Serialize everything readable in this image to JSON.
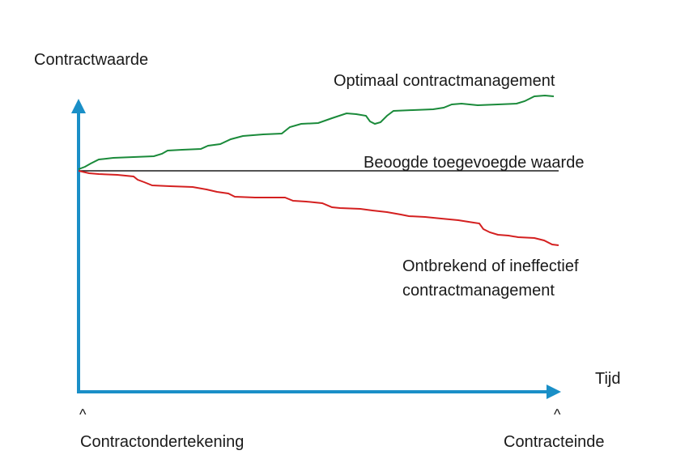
{
  "y_axis_label": "Contractwaarde",
  "x_axis_label": "Tijd",
  "start_label": "Contractondertekening",
  "end_label": "Contracteinde",
  "tick_marker": "^",
  "colors": {
    "axis": "#1a8fc7",
    "optimal": "#1a8a3a",
    "target": "#1a1a1a",
    "ineffective": "#d42020"
  },
  "lines": {
    "optimal": {
      "label": "Optimaal contractmanagement"
    },
    "target": {
      "label": "Beoogde toegevoegde waarde"
    },
    "ineffective": {
      "label_line1": "Ontbrekend of ineffectief",
      "label_line2": "contractmanagement"
    }
  }
}
